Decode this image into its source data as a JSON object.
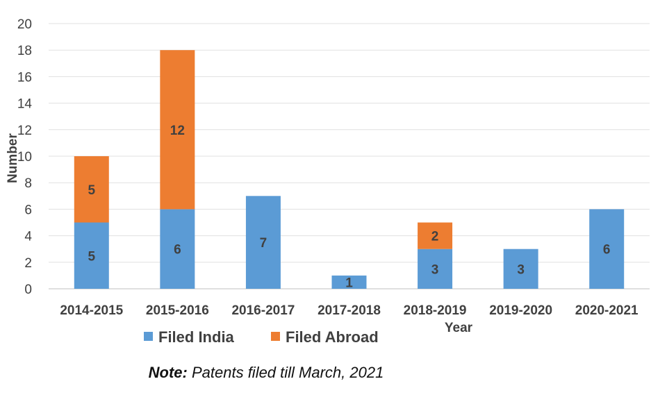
{
  "chart_data": {
    "type": "bar",
    "stacked": true,
    "categories": [
      "2014-2015",
      "2015-2016",
      "2016-2017",
      "2017-2018",
      "2018-2019",
      "2019-2020",
      "2020-2021"
    ],
    "series": [
      {
        "name": "Filed India",
        "color": "#5b9bd5",
        "values": [
          5,
          6,
          7,
          1,
          3,
          3,
          6
        ]
      },
      {
        "name": "Filed Abroad",
        "color": "#ed7d31",
        "values": [
          5,
          12,
          null,
          null,
          2,
          null,
          null
        ]
      }
    ],
    "ylabel": "Number",
    "xlabel": "Year",
    "ylim": [
      0,
      20
    ],
    "yticks": [
      0,
      2,
      4,
      6,
      8,
      10,
      12,
      14,
      16,
      18,
      20
    ],
    "grid": true,
    "legend": "bottom-left"
  },
  "note": {
    "label": "Note:",
    "text": " Patents filed till March, 2021"
  }
}
